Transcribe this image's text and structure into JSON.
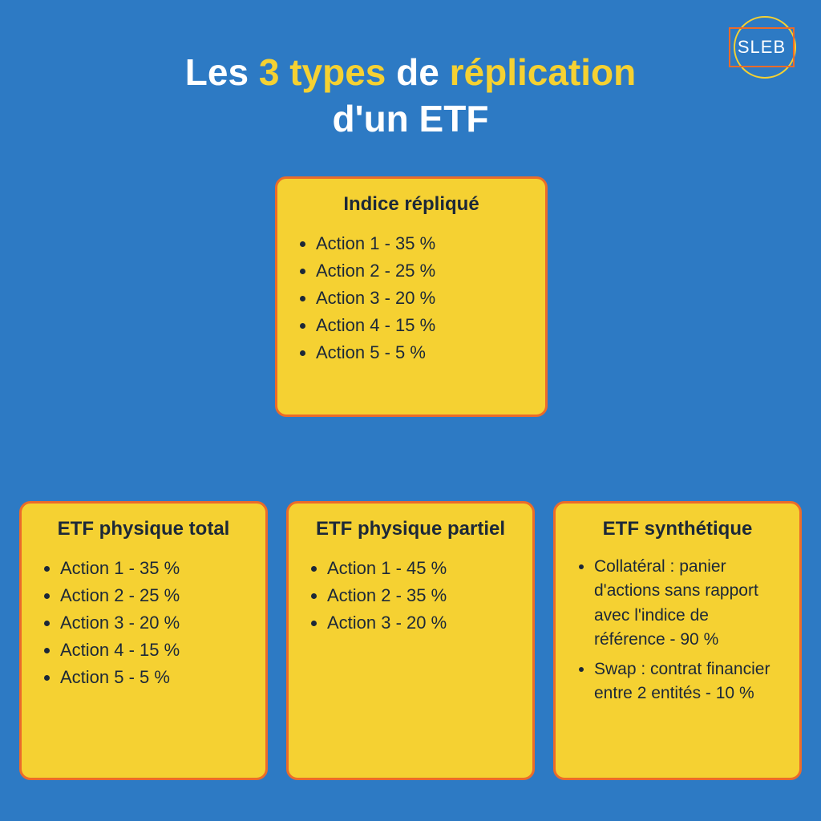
{
  "logo": {
    "text": "SLEB"
  },
  "colors": {
    "background": "#2d7ac4",
    "card_bg": "#f5d132",
    "card_border": "#eb6b2a",
    "text_dark": "#1c2838",
    "text_white": "#ffffff",
    "text_yellow": "#f5d132"
  },
  "title": {
    "parts": [
      {
        "text": "Les ",
        "color": "white"
      },
      {
        "text": "3 types",
        "color": "yellow"
      },
      {
        "text": " de ",
        "color": "white"
      },
      {
        "text": "réplication",
        "color": "yellow"
      },
      {
        "text": " d'un ETF",
        "color": "white"
      }
    ],
    "p1": "Les ",
    "p2": "3 types",
    "p3": " de ",
    "p4": "réplication",
    "p5": "d'un ETF"
  },
  "cards": {
    "top": {
      "title": "Indice répliqué",
      "items": [
        "Action 1 - 35 %",
        "Action 2 - 25 %",
        "Action 3 - 20 %",
        "Action 4 - 15 %",
        "Action 5 - 5 %"
      ]
    },
    "left": {
      "title": "ETF physique total",
      "items": [
        "Action 1 - 35 %",
        "Action 2 - 25 %",
        "Action 3 - 20 %",
        "Action 4 - 15 %",
        "Action 5 - 5 %"
      ]
    },
    "mid": {
      "title": "ETF physique partiel",
      "items": [
        "Action 1 - 45 %",
        "Action 2 - 35 %",
        "Action 3 - 20 %"
      ]
    },
    "right": {
      "title": "ETF synthétique",
      "items": [
        "Collatéral : panier d'actions sans rapport avec l'indice de référence - 90 %",
        "Swap : contrat financier entre 2 entités - 10 %"
      ]
    }
  },
  "style": {
    "title_fontsize": 46,
    "card_title_fontsize": 24,
    "card_item_fontsize": 22,
    "card_border_radius": 14,
    "card_border_width": 3
  }
}
